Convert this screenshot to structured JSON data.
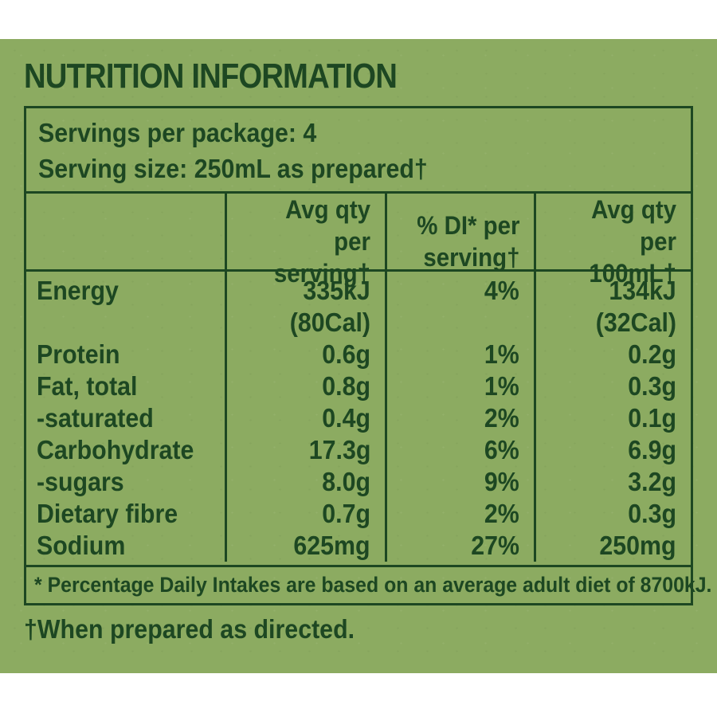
{
  "colors": {
    "page_background": "#ffffff",
    "panel_background": "#8cab61",
    "ink": "#1d4722"
  },
  "title": "NUTRITION INFORMATION",
  "servings": {
    "per_package": "Servings per package: 4",
    "serving_size": "Serving size: 250mL as prepared†"
  },
  "table": {
    "headers": [
      "",
      "Avg qty\nper serving†",
      "% DI* per\nserving†",
      "Avg qty\nper 100mL†"
    ],
    "rows": [
      {
        "label": "Energy",
        "qty": "335kJ",
        "di": "4%",
        "per100": "134kJ"
      },
      {
        "label": "",
        "qty": "(80Cal)",
        "di": "",
        "per100": "(32Cal)"
      },
      {
        "label": "Protein",
        "qty": "0.6g",
        "di": "1%",
        "per100": "0.2g"
      },
      {
        "label": "Fat, total",
        "qty": "0.8g",
        "di": "1%",
        "per100": "0.3g"
      },
      {
        "label": "-saturated",
        "qty": "0.4g",
        "di": "2%",
        "per100": "0.1g"
      },
      {
        "label": "Carbohydrate",
        "qty": "17.3g",
        "di": "6%",
        "per100": "6.9g"
      },
      {
        "label": "-sugars",
        "qty": "8.0g",
        "di": "9%",
        "per100": "3.2g"
      },
      {
        "label": "Dietary fibre",
        "qty": "0.7g",
        "di": "2%",
        "per100": "0.3g"
      },
      {
        "label": "Sodium",
        "qty": "625mg",
        "di": "27%",
        "per100": "250mg"
      }
    ],
    "footnote": "* Percentage Daily Intakes are based on an average adult diet of 8700kJ."
  },
  "footer_note": "†When prepared as directed."
}
